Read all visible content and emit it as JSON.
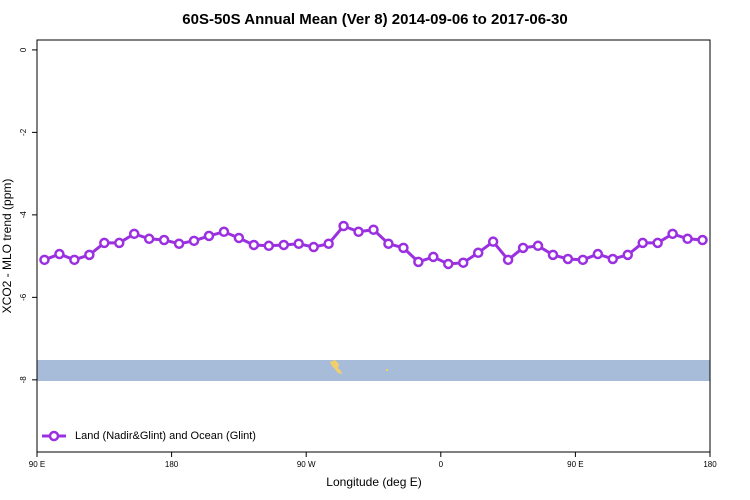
{
  "chart_data": {
    "type": "line",
    "title": "60S-50S Annual Mean (Ver 8)   2014-09-06 to 2017-06-30",
    "x_label": "Longitude (deg E)",
    "y_label": "XCO2 - MLO trend (ppm)",
    "x": [
      95,
      105,
      115,
      125,
      135,
      145,
      155,
      165,
      175,
      185,
      195,
      205,
      215,
      225,
      235,
      245,
      255,
      265,
      275,
      285,
      295,
      305,
      315,
      325,
      335,
      345,
      355,
      365,
      375,
      385,
      395,
      405,
      415,
      425,
      435,
      445,
      455,
      465,
      475,
      485,
      495,
      505,
      515,
      525,
      535
    ],
    "series": [
      {
        "name": "Land (Nadir&Glint) and Ocean (Glint)",
        "color": "#9b30e0",
        "values": [
          -5.09,
          -4.95,
          -5.09,
          -4.97,
          -4.68,
          -4.68,
          -4.46,
          -4.58,
          -4.61,
          -4.7,
          -4.63,
          -4.51,
          -4.41,
          -4.56,
          -4.73,
          -4.75,
          -4.73,
          -4.7,
          -4.78,
          -4.7,
          -4.27,
          -4.41,
          -4.36,
          -4.7,
          -4.8,
          -5.14,
          -5.02,
          -5.19,
          -5.16,
          -4.92,
          -4.65,
          -5.09,
          -4.8,
          -4.75,
          -4.97,
          -5.07,
          -5.09,
          -4.95,
          -5.07,
          -4.97,
          -4.68,
          -4.68,
          -4.46,
          -4.58,
          -4.61
        ]
      }
    ],
    "xlim": [
      90,
      540
    ],
    "xticks": [
      {
        "value": 90,
        "label": "90 E"
      },
      180,
      {
        "value": 270,
        "label": "90 W"
      },
      {
        "value": 360,
        "label": "0"
      },
      {
        "value": 450,
        "label": "90 E"
      },
      {
        "value": 540,
        "label": "180"
      }
    ],
    "ylim": [
      -9.75,
      0.24
    ],
    "yticks": [
      0,
      -2,
      -4,
      -6,
      -8
    ],
    "legend": "bottom-left"
  }
}
